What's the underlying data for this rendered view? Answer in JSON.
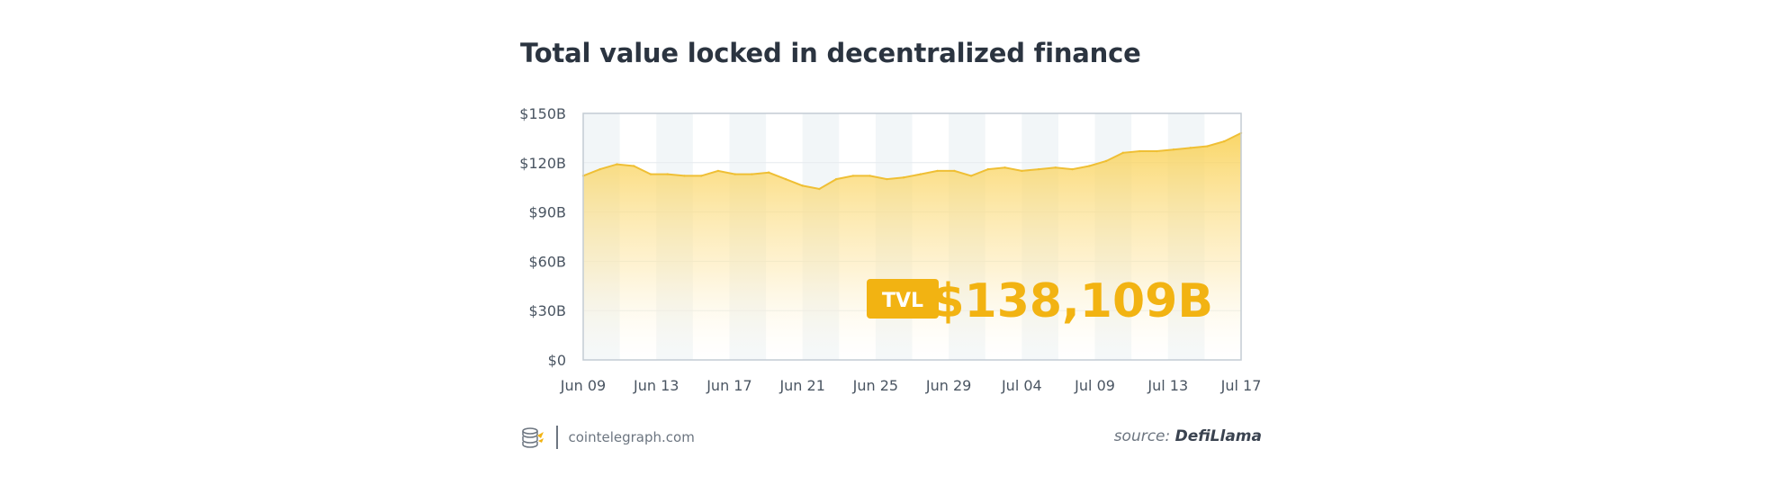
{
  "title": "Total value locked in decentralized finance",
  "footer": {
    "site": "cointelegraph.com",
    "source_prefix": "source:",
    "source_name": "DefiLlama"
  },
  "badge": {
    "label": "TVL",
    "value": "$138,109B"
  },
  "colors": {
    "line": "#f0c030",
    "fill_top": "#fbd45a",
    "band": "#f2f6f8",
    "accent": "#f2b312"
  },
  "icons": {
    "logo": "coin-stack-icon"
  },
  "chart_data": {
    "type": "area",
    "title": "Total value locked in decentralized finance",
    "xlabel": "",
    "ylabel": "",
    "ylim": [
      0,
      150
    ],
    "yticks": [
      0,
      30,
      60,
      90,
      120,
      150
    ],
    "ytick_labels": [
      "$0",
      "$30B",
      "$60B",
      "$90B",
      "$120B",
      "$150B"
    ],
    "xtick_labels": [
      "Jun 09",
      "Jun 13",
      "Jun 17",
      "Jun 21",
      "Jun 25",
      "Jun 29",
      "Jul 04",
      "Jul 09",
      "Jul 13",
      "Jul 17"
    ],
    "grid": true,
    "series": [
      {
        "values": [
          112,
          116,
          119,
          118,
          113,
          113,
          112,
          112,
          115,
          113,
          113,
          114,
          110,
          106,
          104,
          110,
          112,
          112,
          110,
          111,
          113,
          115,
          115,
          112,
          116,
          117,
          115,
          116,
          117,
          116,
          118,
          121,
          126,
          127,
          127,
          128,
          129,
          130,
          133,
          138
        ]
      }
    ]
  }
}
